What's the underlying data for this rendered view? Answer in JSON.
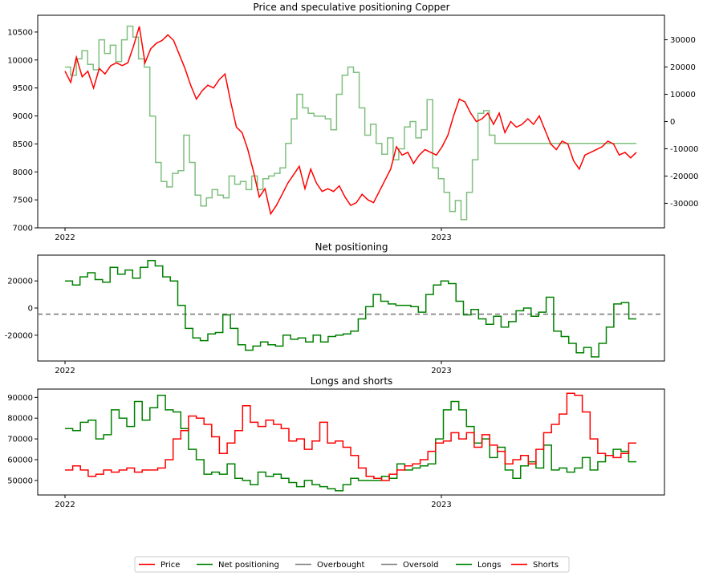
{
  "chart_data": [
    {
      "type": "line",
      "title": "Price and speculative positioning Copper",
      "x_ticks": [
        "2022",
        "2023"
      ],
      "ylim": [
        7000,
        10800
      ],
      "y_ticks": [
        7000,
        7500,
        8000,
        8500,
        9000,
        9500,
        10000,
        10500
      ],
      "y2lim": [
        -39000,
        39000
      ],
      "y2_ticks": [
        -30000,
        -20000,
        -10000,
        0,
        10000,
        20000,
        30000
      ],
      "series": [
        {
          "name": "Price",
          "color": "#ff0000",
          "axis": "left",
          "x": [
            0,
            0.01,
            0.02,
            0.03,
            0.04,
            0.05,
            0.06,
            0.07,
            0.08,
            0.09,
            0.1,
            0.11,
            0.12,
            0.13,
            0.14,
            0.15,
            0.16,
            0.17,
            0.18,
            0.19,
            0.2,
            0.21,
            0.22,
            0.23,
            0.24,
            0.25,
            0.26,
            0.27,
            0.28,
            0.29,
            0.3,
            0.31,
            0.32,
            0.33,
            0.34,
            0.35,
            0.36,
            0.37,
            0.38,
            0.39,
            0.4,
            0.41,
            0.42,
            0.43,
            0.44,
            0.45,
            0.46,
            0.47,
            0.48,
            0.49,
            0.5,
            0.51,
            0.52,
            0.53,
            0.54,
            0.55,
            0.56,
            0.57,
            0.58,
            0.59,
            0.6,
            0.61,
            0.62,
            0.63,
            0.64,
            0.65,
            0.66,
            0.67,
            0.68,
            0.69,
            0.7,
            0.71,
            0.72,
            0.73,
            0.74,
            0.75,
            0.76,
            0.77,
            0.78,
            0.79,
            0.8,
            0.81,
            0.82,
            0.83,
            0.84,
            0.85,
            0.86,
            0.87,
            0.88,
            0.89,
            0.9,
            0.91,
            0.92,
            0.93,
            0.94,
            0.95,
            0.96,
            0.97,
            0.98,
            0.99,
            1.0
          ],
          "values": [
            9800,
            9600,
            10050,
            9700,
            9800,
            9500,
            9850,
            9750,
            9900,
            9950,
            9900,
            9950,
            10250,
            10600,
            9950,
            10200,
            10300,
            10350,
            10450,
            10350,
            10100,
            9850,
            9550,
            9300,
            9450,
            9550,
            9500,
            9650,
            9750,
            9250,
            8800,
            8700,
            8400,
            8000,
            7550,
            7700,
            7250,
            7400,
            7600,
            7800,
            7950,
            8100,
            7700,
            8050,
            7800,
            7650,
            7700,
            7650,
            7750,
            7550,
            7400,
            7450,
            7600,
            7500,
            7450,
            7650,
            7850,
            8050,
            8450,
            8300,
            8350,
            8150,
            8300,
            8400,
            8350,
            8300,
            8450,
            8650,
            9000,
            9300,
            9250,
            9050,
            8900,
            8950,
            9050,
            8850,
            9050,
            8700,
            8900,
            8800,
            8850,
            8950,
            8850,
            9000,
            8750,
            8500,
            8400,
            8550,
            8500,
            8200,
            8050,
            8300,
            8350,
            8400,
            8450,
            8550,
            8500,
            8300,
            8350,
            8250,
            8350
          ]
        },
        {
          "name": "Net positioning",
          "color": "#7fbf7f",
          "axis": "right",
          "x": [
            0,
            0.01,
            0.02,
            0.03,
            0.04,
            0.05,
            0.06,
            0.07,
            0.08,
            0.09,
            0.1,
            0.11,
            0.12,
            0.13,
            0.14,
            0.15,
            0.16,
            0.17,
            0.18,
            0.19,
            0.2,
            0.21,
            0.22,
            0.23,
            0.24,
            0.25,
            0.26,
            0.27,
            0.28,
            0.29,
            0.3,
            0.31,
            0.32,
            0.33,
            0.34,
            0.35,
            0.36,
            0.37,
            0.38,
            0.39,
            0.4,
            0.41,
            0.42,
            0.43,
            0.44,
            0.45,
            0.46,
            0.47,
            0.48,
            0.49,
            0.5,
            0.51,
            0.52,
            0.53,
            0.54,
            0.55,
            0.56,
            0.57,
            0.58,
            0.59,
            0.6,
            0.61,
            0.62,
            0.63,
            0.64,
            0.65,
            0.66,
            0.67,
            0.68,
            0.69,
            0.7,
            0.71,
            0.72,
            0.73,
            0.74,
            0.75,
            0.76,
            0.77,
            0.78,
            0.79,
            0.8,
            0.81,
            0.82,
            0.83,
            0.84,
            0.85,
            0.86,
            0.87,
            0.88,
            0.89,
            0.9,
            0.91,
            0.92,
            0.93,
            0.94,
            0.95,
            0.96,
            0.97,
            0.98,
            0.99,
            1.0
          ],
          "values": [
            20000,
            17000,
            23000,
            26000,
            21000,
            19000,
            30000,
            25000,
            28000,
            22000,
            30000,
            35000,
            31000,
            23000,
            20000,
            2000,
            -15000,
            -22000,
            -24000,
            -19000,
            -18000,
            -5000,
            -15000,
            -27000,
            -31000,
            -28000,
            -25000,
            -27000,
            -28000,
            -20000,
            -23000,
            -22000,
            -25000,
            -20000,
            -25000,
            -21000,
            -20000,
            -19000,
            -17000,
            -8000,
            1000,
            10000,
            5000,
            3000,
            2000,
            2000,
            1000,
            -3000,
            10000,
            17000,
            20000,
            18000,
            5000,
            -5000,
            -1000,
            -8000,
            -12000,
            -6000,
            -14000,
            -10000,
            -2000,
            0,
            -6000,
            -3000,
            8000,
            -17000,
            -21000,
            -26000,
            -33000,
            -29000,
            -36000,
            -26000,
            -14000,
            3000,
            4000,
            -5000,
            -8000,
            -8000,
            -8000,
            -8000,
            -8000,
            -8000,
            -8000,
            -8000,
            -8000,
            -8000,
            -8000,
            -8000,
            -8000,
            -8000,
            -8000,
            -8000,
            -8000,
            -8000,
            -8000,
            -8000,
            -8000,
            -8000,
            -8000,
            -8000,
            -8000
          ]
        }
      ]
    },
    {
      "type": "line",
      "title": "Net positioning",
      "x_ticks": [
        "2022",
        "2023"
      ],
      "ylim": [
        -39000,
        39000
      ],
      "y_ticks": [
        -20000,
        0,
        20000
      ],
      "series": [
        {
          "name": "Net positioning",
          "color": "#008000",
          "values": [
            20000,
            17000,
            23000,
            26000,
            21000,
            19000,
            30000,
            25000,
            28000,
            22000,
            30000,
            35000,
            31000,
            23000,
            20000,
            2000,
            -15000,
            -22000,
            -24000,
            -19000,
            -18000,
            -5000,
            -15000,
            -27000,
            -31000,
            -28000,
            -25000,
            -27000,
            -28000,
            -20000,
            -23000,
            -22000,
            -25000,
            -20000,
            -25000,
            -21000,
            -20000,
            -19000,
            -17000,
            -8000,
            1000,
            10000,
            5000,
            3000,
            2000,
            2000,
            1000,
            -3000,
            10000,
            17000,
            20000,
            18000,
            5000,
            -5000,
            -1000,
            -8000,
            -12000,
            -6000,
            -14000,
            -10000,
            -2000,
            0,
            -6000,
            -3000,
            8000,
            -17000,
            -21000,
            -26000,
            -33000,
            -29000,
            -36000,
            -26000,
            -14000,
            3000,
            4000,
            -8000
          ]
        },
        {
          "name": "Overbought",
          "color": "#808080",
          "dashed": true,
          "value": -4500
        },
        {
          "name": "Oversold",
          "color": "#808080",
          "dashed": true,
          "value": -4500
        }
      ]
    },
    {
      "type": "line",
      "title": "Longs and shorts",
      "x_ticks": [
        "2022",
        "2023"
      ],
      "ylim": [
        43000,
        94000
      ],
      "y_ticks": [
        50000,
        60000,
        70000,
        80000,
        90000
      ],
      "series": [
        {
          "name": "Longs",
          "color": "#008000",
          "values": [
            75000,
            74000,
            78000,
            79000,
            70000,
            72000,
            84000,
            80000,
            76000,
            88000,
            79000,
            85000,
            91000,
            84000,
            83000,
            75000,
            65000,
            60000,
            53000,
            54000,
            53000,
            58000,
            51000,
            50000,
            48000,
            54000,
            52000,
            53000,
            51000,
            49000,
            47000,
            50000,
            48000,
            47000,
            46000,
            45000,
            48000,
            51000,
            50000,
            50000,
            50000,
            52000,
            51000,
            58000,
            55000,
            56000,
            57000,
            58000,
            70000,
            84000,
            88000,
            84000,
            76000,
            68000,
            70000,
            61000,
            66000,
            55000,
            51000,
            57000,
            59000,
            56000,
            67000,
            55000,
            56000,
            54000,
            56000,
            61000,
            55000,
            59000,
            62000,
            65000,
            64000,
            59000
          ]
        },
        {
          "name": "Shorts",
          "color": "#ff0000",
          "values": [
            55000,
            57000,
            55000,
            52000,
            53000,
            55000,
            54000,
            55000,
            56000,
            54000,
            55000,
            55000,
            56000,
            60000,
            70000,
            74000,
            81000,
            80000,
            77000,
            71000,
            63000,
            68000,
            74000,
            86000,
            78000,
            76000,
            79000,
            77000,
            75000,
            69000,
            70000,
            65000,
            69000,
            78000,
            68000,
            69000,
            66000,
            62000,
            56000,
            52000,
            51000,
            50000,
            53000,
            55000,
            57000,
            58000,
            60000,
            64000,
            68000,
            69000,
            73000,
            70000,
            73000,
            66000,
            72000,
            67000,
            64000,
            58000,
            60000,
            62000,
            58000,
            65000,
            73000,
            77000,
            82000,
            92000,
            91000,
            83000,
            70000,
            63000,
            62000,
            61000,
            63000,
            68000
          ]
        }
      ]
    }
  ],
  "legend": {
    "placement": "bottom-center",
    "items": [
      {
        "name": "Price",
        "color": "#ff0000"
      },
      {
        "name": "Net positioning",
        "color": "#008000"
      },
      {
        "name": "Overbought",
        "color": "#808080"
      },
      {
        "name": "Oversold",
        "color": "#808080"
      },
      {
        "name": "Longs",
        "color": "#008000"
      },
      {
        "name": "Shorts",
        "color": "#ff0000"
      }
    ]
  }
}
